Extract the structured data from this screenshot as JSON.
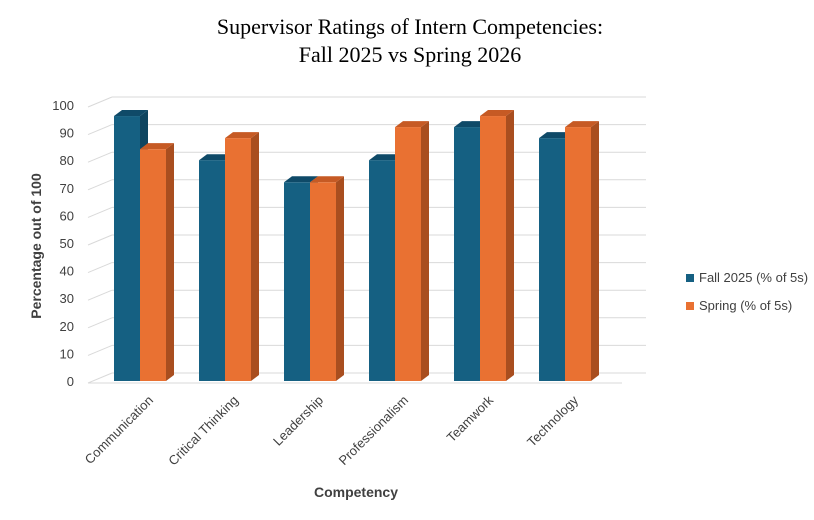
{
  "chart_data": {
    "type": "bar",
    "title_lines": [
      "Supervisor Ratings of Intern Competencies:",
      "Fall 2025 vs Spring 2026"
    ],
    "xlabel": "Competency",
    "ylabel": "Percentage out of 100",
    "ylim": [
      0,
      100
    ],
    "yticks": [
      0,
      10,
      20,
      30,
      40,
      50,
      60,
      70,
      80,
      90,
      100
    ],
    "grid": true,
    "legend_position": "right",
    "categories": [
      "Communication",
      "Critical Thinking",
      "Leadership",
      "Professionalism",
      "Teamwork",
      "Technology"
    ],
    "series": [
      {
        "name": "Fall 2025 (% of 5s)",
        "values": [
          96,
          80,
          72,
          80,
          92,
          88
        ],
        "color": "#156082",
        "side": "#0e4560",
        "top": "#0f4a68"
      },
      {
        "name": "Spring (% of 5s)",
        "values": [
          84,
          88,
          72,
          92,
          96,
          92
        ],
        "color": "#e97132",
        "side": "#a94e1f",
        "top": "#c65a24"
      }
    ]
  }
}
